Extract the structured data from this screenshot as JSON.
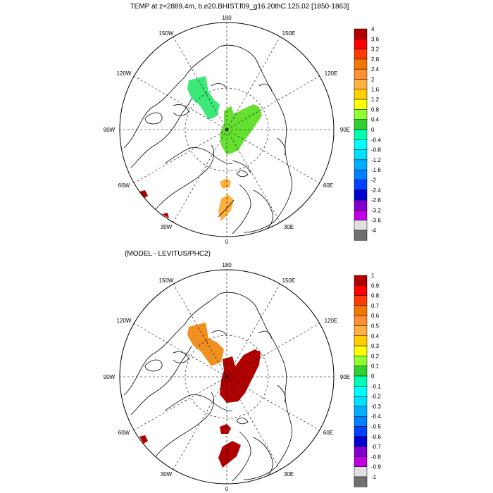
{
  "colors": {
    "panel1": [
      "#b00000",
      "#ff0000",
      "#ff3a00",
      "#f07800",
      "#ff9030",
      "#ffb040",
      "#ffd000",
      "#ffff00",
      "#90ff30",
      "#30d030",
      "#00ffb0",
      "#00ffff",
      "#00e0ff",
      "#00b0ff",
      "#0080ff",
      "#0040ff",
      "#0000d0",
      "#8000d0",
      "#c000e0",
      "#e0e0e0",
      "#707070"
    ],
    "panel2": [
      "#b00000",
      "#ff0000",
      "#ff3a00",
      "#f07800",
      "#ff9030",
      "#ffb040",
      "#ffd000",
      "#ffff00",
      "#90ff30",
      "#30d030",
      "#00ffb0",
      "#00ffff",
      "#00e0ff",
      "#00b0ff",
      "#0080ff",
      "#0040ff",
      "#0000d0",
      "#8000d0",
      "#c000e0",
      "#e0e0e0",
      "#707070"
    ],
    "region_top_a": "#3ce878",
    "region_top_b": "#66e030",
    "region_top_c": "#ffb040",
    "region_bottom_a": "#f09020",
    "region_bottom_b": "#b00000",
    "coast": "#000000"
  },
  "maps": [
    {
      "title": "TEMP at z=2889.4m, b.e20.BHIST.f09_g16.20thC.125.02 [1850-1863]",
      "ticks": [
        "4",
        "3.6",
        "3.2",
        "2.8",
        "2.4",
        "2",
        "1.6",
        "1.2",
        "0.8",
        "0.4",
        "0",
        "-0.4",
        "-0.8",
        "-1.2",
        "-1.6",
        "-2",
        "-2.4",
        "-2.8",
        "-3.2",
        "-3.6",
        "-4"
      ],
      "lon_labels": {
        "top": "180",
        "top_left": "150W",
        "top_right": "150E",
        "upper_left": "120W",
        "upper_right": "120E",
        "left": "90W",
        "right": "90E",
        "lower_left": "60W",
        "lower_right": "60E",
        "bottom_left": "30W",
        "bottom_right": "30E",
        "bottom": "0"
      }
    },
    {
      "title": "(MODEL - LEVITUS/PHC2)",
      "ticks": [
        "1",
        "0.9",
        "0.8",
        "0.7",
        "0.6",
        "0.5",
        "0.4",
        "0.3",
        "0.2",
        "0.1",
        "0",
        "-0.1",
        "-0.2",
        "-0.3",
        "-0.4",
        "-0.5",
        "-0.6",
        "-0.7",
        "-0.8",
        "-0.9",
        "-1"
      ],
      "lon_labels": {
        "top": "180",
        "top_left": "150W",
        "top_right": "150E",
        "upper_left": "120W",
        "upper_right": "120E",
        "left": "90W",
        "right": "90E",
        "lower_left": "60W",
        "lower_right": "60E",
        "bottom_left": "30W",
        "bottom_right": "30E",
        "bottom": "0"
      }
    }
  ]
}
